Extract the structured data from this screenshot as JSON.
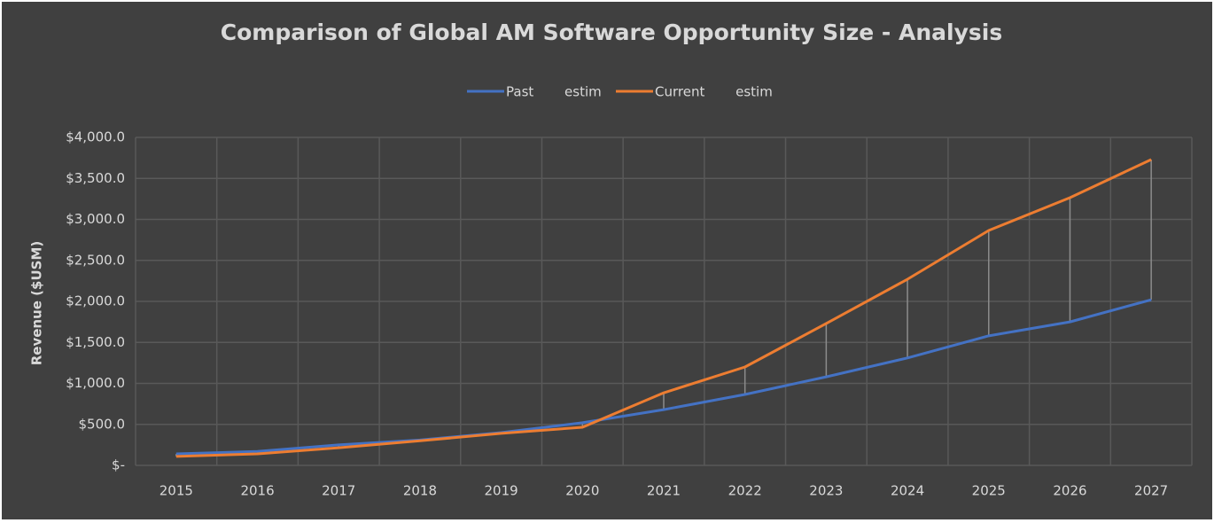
{
  "chart_data": {
    "type": "line",
    "title": "Comparison of Global AM Software Opportunity Size - Analysis",
    "y_label": "Revenue ($USM)",
    "categories": [
      "2015",
      "2016",
      "2017",
      "2018",
      "2019",
      "2020",
      "2021",
      "2022",
      "2023",
      "2024",
      "2025",
      "2026",
      "2027"
    ],
    "series": [
      {
        "name": "Past estim",
        "color": "#4472c4",
        "values": [
          140,
          170,
          250,
          310,
          400,
          520,
          680,
          865,
          1080,
          1310,
          1580,
          1750,
          2020
        ]
      },
      {
        "name": "Current estim",
        "color": "#ed7d31",
        "values": [
          110,
          140,
          215,
          300,
          390,
          465,
          885,
          1200,
          1730,
          2270,
          2865,
          3265,
          3730
        ]
      }
    ],
    "ylim": [
      0,
      4000
    ],
    "yticks": [
      {
        "value": 0,
        "label": "$-"
      },
      {
        "value": 500,
        "label": "$500.0"
      },
      {
        "value": 1000,
        "label": "$1,000.0"
      },
      {
        "value": 1500,
        "label": "$1,500.0"
      },
      {
        "value": 2000,
        "label": "$2,000.0"
      },
      {
        "value": 2500,
        "label": "$2,500.0"
      },
      {
        "value": 3000,
        "label": "$3,000.0"
      },
      {
        "value": 3500,
        "label": "$3,500.0"
      },
      {
        "value": 4000,
        "label": "$4,000.0"
      }
    ],
    "grid": true,
    "legend": "top",
    "high_low_lines": true
  }
}
